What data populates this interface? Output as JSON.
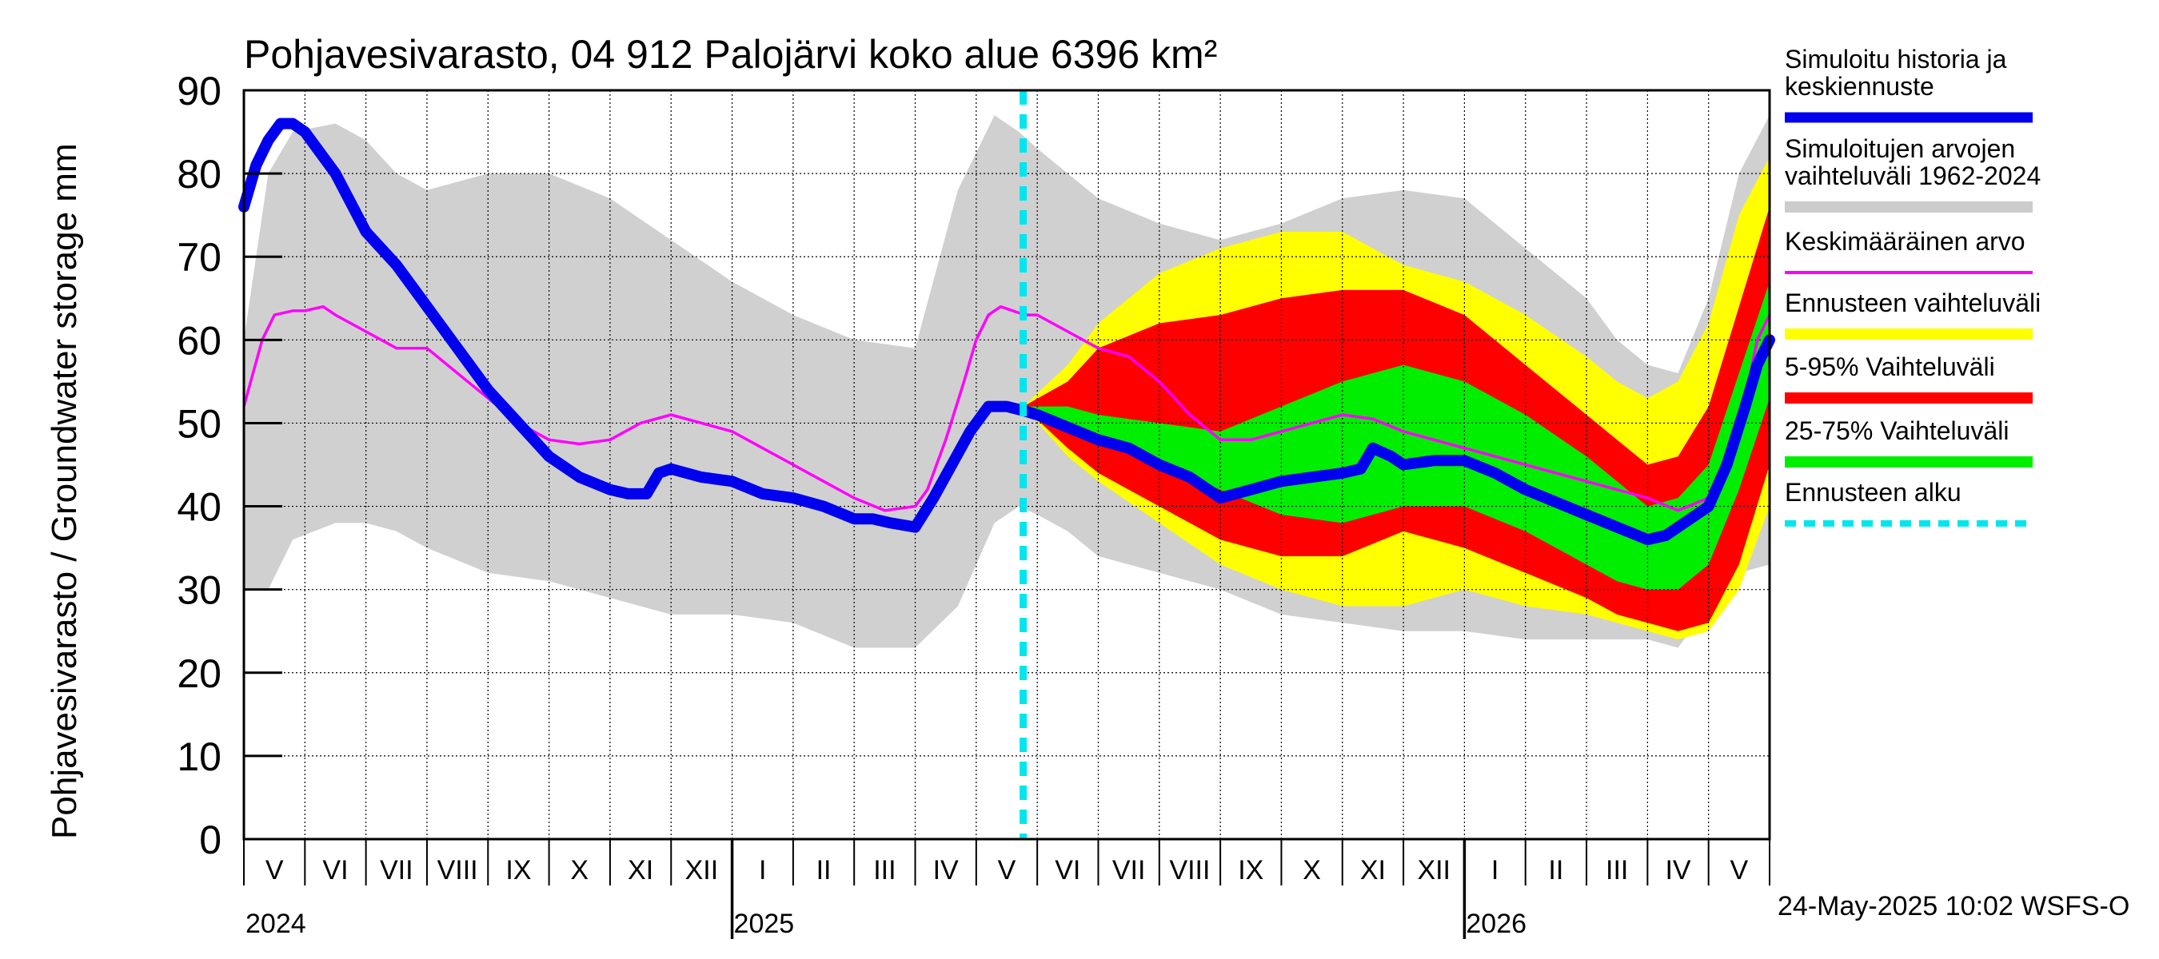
{
  "chart_data": {
    "type": "area",
    "title": "Pohjavesivarasto, 04 912 Palojärvi koko alue 6396 km²",
    "ylabel": "Pohjavesivarasto / Groundwater storage   mm",
    "ylim": [
      0,
      90
    ],
    "yticks": [
      "0",
      "10",
      "20",
      "30",
      "40",
      "50",
      "60",
      "70",
      "80",
      "90"
    ],
    "xrange_months": [
      0,
      25
    ],
    "forecast_start": 12.77,
    "month_labels": [
      "V",
      "VI",
      "VII",
      "VIII",
      "IX",
      "X",
      "XI",
      "XII",
      "I",
      "II",
      "III",
      "IV",
      "V",
      "VI",
      "VII",
      "VIII",
      "IX",
      "X",
      "XI",
      "XII",
      "I",
      "II",
      "III",
      "IV",
      "V"
    ],
    "years": [
      {
        "label": "2024",
        "month": 0
      },
      {
        "label": "2025",
        "month": 8
      },
      {
        "label": "2026",
        "month": 20
      }
    ],
    "legend": [
      {
        "label": "Simuloitu historia ja keskiennuste",
        "lines": [
          "Simuloitu historia ja",
          "keskiennuste"
        ],
        "color": "#0000ee",
        "style": "thick"
      },
      {
        "label": "Simuloitujen arvojen vaihteluväli 1962-2024",
        "lines": [
          "Simuloitujen arvojen",
          "vaihteluväli 1962-2024"
        ],
        "color": "#cccccc",
        "style": "band"
      },
      {
        "label": "Keskimääräinen arvo",
        "lines": [
          "Keskimääräinen arvo"
        ],
        "color": "#ff00ff",
        "style": "thin"
      },
      {
        "label": "Ennusteen vaihteluväli",
        "lines": [
          "Ennusteen vaihteluväli"
        ],
        "color": "#ffff00",
        "style": "band"
      },
      {
        "label": "5-95% Vaihteluväli",
        "lines": [
          "5-95% Vaihteluväli"
        ],
        "color": "#ff0000",
        "style": "band"
      },
      {
        "label": "25-75% Vaihteluväli",
        "lines": [
          "25-75% Vaihteluväli"
        ],
        "color": "#00ee00",
        "style": "band"
      },
      {
        "label": "Ennusteen alku",
        "lines": [
          "Ennusteen alku"
        ],
        "color": "#00e5ee",
        "style": "dashed"
      }
    ],
    "series": {
      "history_range": {
        "name": "Simuloitujen arvojen vaihteluväli 1962-2024",
        "x": [
          0,
          0.4,
          0.8,
          1.5,
          2,
          2.5,
          3,
          4,
          5,
          6,
          7,
          8,
          9,
          10,
          11,
          11.7,
          12.3,
          12.7,
          13,
          13.5,
          14,
          15,
          16,
          17,
          18,
          19,
          20,
          21,
          22,
          22.5,
          23,
          23.5,
          24,
          24.5,
          25
        ],
        "upper": [
          60,
          80,
          85,
          86,
          84,
          80,
          78,
          80,
          80,
          77,
          72,
          67,
          63,
          60,
          59,
          78,
          87,
          85,
          83,
          80,
          77,
          74,
          72,
          74,
          77,
          78,
          77,
          71,
          65,
          60,
          57,
          56,
          65,
          80,
          87
        ],
        "lower": [
          30,
          30,
          36,
          38,
          38,
          37,
          35,
          32,
          31,
          29,
          27,
          27,
          26,
          23,
          23,
          28,
          38,
          40,
          39,
          37,
          34,
          32,
          30,
          27,
          26,
          25,
          25,
          24,
          24,
          24,
          24,
          23,
          28,
          32,
          33
        ]
      },
      "forecast_range": {
        "name": "Ennusteen vaihteluväli",
        "x": [
          12.77,
          13.5,
          14,
          15,
          16,
          17,
          18,
          19,
          20,
          21,
          22,
          22.5,
          23,
          23.5,
          24,
          24.5,
          25
        ],
        "upper": [
          52,
          57,
          62,
          68,
          71,
          73,
          73,
          69,
          67,
          63,
          58,
          55,
          53,
          55,
          62,
          75,
          82
        ],
        "lower": [
          52,
          46,
          43,
          38,
          33,
          30,
          28,
          28,
          30,
          28,
          27,
          26,
          25,
          24,
          25,
          30,
          40
        ]
      },
      "p5_95": {
        "name": "5-95% Vaihteluväli",
        "x": [
          12.77,
          13.5,
          14,
          15,
          16,
          17,
          18,
          19,
          20,
          21,
          22,
          22.5,
          23,
          23.5,
          24,
          24.5,
          25
        ],
        "upper": [
          52,
          55,
          59,
          62,
          63,
          65,
          66,
          66,
          63,
          57,
          51,
          48,
          45,
          46,
          52,
          64,
          76
        ],
        "lower": [
          52,
          47,
          44,
          40,
          36,
          34,
          34,
          37,
          35,
          32,
          29,
          27,
          26,
          25,
          26,
          33,
          45
        ]
      },
      "p25_75": {
        "name": "25-75% Vaihteluväli",
        "x": [
          12.77,
          13.5,
          14,
          15,
          16,
          17,
          18,
          19,
          20,
          21,
          22,
          22.5,
          23,
          23.5,
          24,
          24.5,
          25
        ],
        "upper": [
          52,
          52,
          51,
          50,
          49,
          52,
          55,
          57,
          55,
          51,
          46,
          43,
          40,
          41,
          45,
          56,
          67
        ],
        "lower": [
          52,
          50,
          48,
          45,
          42,
          39,
          38,
          40,
          40,
          37,
          33,
          31,
          30,
          30,
          33,
          42,
          53
        ]
      },
      "mean": {
        "name": "Keskimääräinen arvo",
        "x": [
          0,
          0.3,
          0.5,
          0.8,
          1,
          1.3,
          1.5,
          2,
          2.5,
          3,
          3.5,
          4,
          4.5,
          5,
          5.5,
          6,
          6.5,
          7,
          7.5,
          8,
          8.5,
          9,
          9.5,
          10,
          10.5,
          11,
          11.2,
          11.5,
          11.8,
          12,
          12.2,
          12.4,
          12.8,
          13,
          13.5,
          14,
          14.5,
          15,
          15.5,
          16,
          16.5,
          17,
          17.5,
          18,
          18.5,
          19,
          19.5,
          20,
          20.5,
          21,
          21.5,
          22,
          22.5,
          23,
          23.5,
          24,
          24.3,
          24.6,
          24.8,
          25
        ],
        "y": [
          52,
          60,
          63,
          63.5,
          63.5,
          64,
          63,
          61,
          59,
          59,
          56,
          53,
          50,
          48,
          47.5,
          48,
          50,
          51,
          50,
          49,
          47,
          45,
          43,
          41,
          39.5,
          40,
          42,
          48,
          55,
          60,
          63,
          64,
          63,
          63,
          61,
          59,
          58,
          55,
          51,
          48,
          48,
          49,
          50,
          51,
          50.5,
          49,
          48,
          47,
          46,
          45,
          44,
          43,
          42,
          41,
          39.5,
          41,
          46,
          53,
          60,
          63
        ]
      },
      "simulated": {
        "name": "Simuloitu historia ja keskiennuste",
        "x": [
          0,
          0.2,
          0.4,
          0.6,
          0.8,
          1,
          1.5,
          2,
          2.5,
          3,
          3.5,
          4,
          4.5,
          5,
          5.5,
          6,
          6.3,
          6.6,
          6.8,
          7,
          7.5,
          8,
          8.5,
          9,
          9.5,
          10,
          10.3,
          10.6,
          11,
          11.3,
          11.6,
          11.9,
          12.2,
          12.5,
          12.77,
          13,
          13.5,
          14,
          14.5,
          15,
          15.5,
          16,
          16.5,
          17,
          17.5,
          18,
          18.3,
          18.5,
          18.8,
          19,
          19.5,
          20,
          20.5,
          21,
          21.5,
          22,
          22.5,
          23,
          23.3,
          23.6,
          24,
          24.3,
          24.6,
          24.8,
          25
        ],
        "y": [
          76,
          81,
          84,
          86,
          86,
          85,
          80,
          73,
          69,
          64,
          59,
          54,
          50,
          46,
          43.5,
          42,
          41.5,
          41.5,
          44,
          44.5,
          43.5,
          43,
          41.5,
          41,
          40,
          38.5,
          38.5,
          38,
          37.5,
          41,
          45,
          49,
          52,
          52,
          51.5,
          51,
          49.5,
          48,
          47,
          45,
          43.5,
          41,
          42,
          43,
          43.5,
          44,
          44.5,
          47,
          46,
          45,
          45.5,
          45.5,
          44,
          42,
          40.5,
          39,
          37.5,
          36,
          36.5,
          38,
          40,
          45,
          52,
          57,
          60
        ]
      }
    }
  },
  "footer": {
    "timestamp": "24-May-2025 10:02 WSFS-O"
  }
}
